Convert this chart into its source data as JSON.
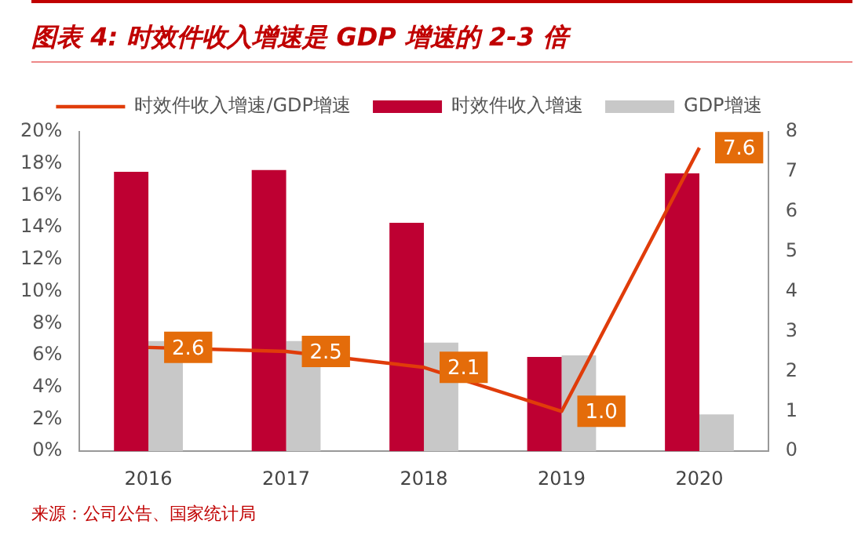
{
  "chart_data": {
    "type": "bar",
    "title": "图表 4:  时效件收入增速是 GDP 增速的 2-3 倍",
    "categories": [
      "2016",
      "2017",
      "2018",
      "2019",
      "2020"
    ],
    "series": [
      {
        "name": "时效件收入增速",
        "color": "#be0032",
        "values": [
          17.5,
          17.6,
          14.3,
          5.9,
          17.4
        ]
      },
      {
        "name": "GDP增速",
        "color": "#c8c8c8",
        "values": [
          6.9,
          6.9,
          6.8,
          6.0,
          2.3
        ]
      },
      {
        "name": "时效件收入增速/GDP增速",
        "type": "line",
        "axis": "y2",
        "color": "#e03c0a",
        "values": [
          2.6,
          2.5,
          2.1,
          1.0,
          7.6
        ],
        "value_labels": [
          "2.6",
          "2.5",
          "2.1",
          "1.0",
          "7.6"
        ]
      }
    ],
    "ylim": [
      0,
      20
    ],
    "yticks": [
      {
        "value": 0,
        "label": "0%"
      },
      {
        "value": 2,
        "label": "2%"
      },
      {
        "value": 4,
        "label": "4%"
      },
      {
        "value": 6,
        "label": "6%"
      },
      {
        "value": 8,
        "label": "8%"
      },
      {
        "value": 10,
        "label": "10%"
      },
      {
        "value": 12,
        "label": "12%"
      },
      {
        "value": 14,
        "label": "14%"
      },
      {
        "value": 16,
        "label": "16%"
      },
      {
        "value": 18,
        "label": "18%"
      },
      {
        "value": 20,
        "label": "20%"
      }
    ],
    "y2lim": [
      0,
      8
    ],
    "y2ticks": [
      0,
      1,
      2,
      3,
      4,
      5,
      6,
      7,
      8
    ],
    "grid": false,
    "legend": "top",
    "marker": "none",
    "annotations": [
      "来源：公司公告、国家统计局"
    ]
  }
}
